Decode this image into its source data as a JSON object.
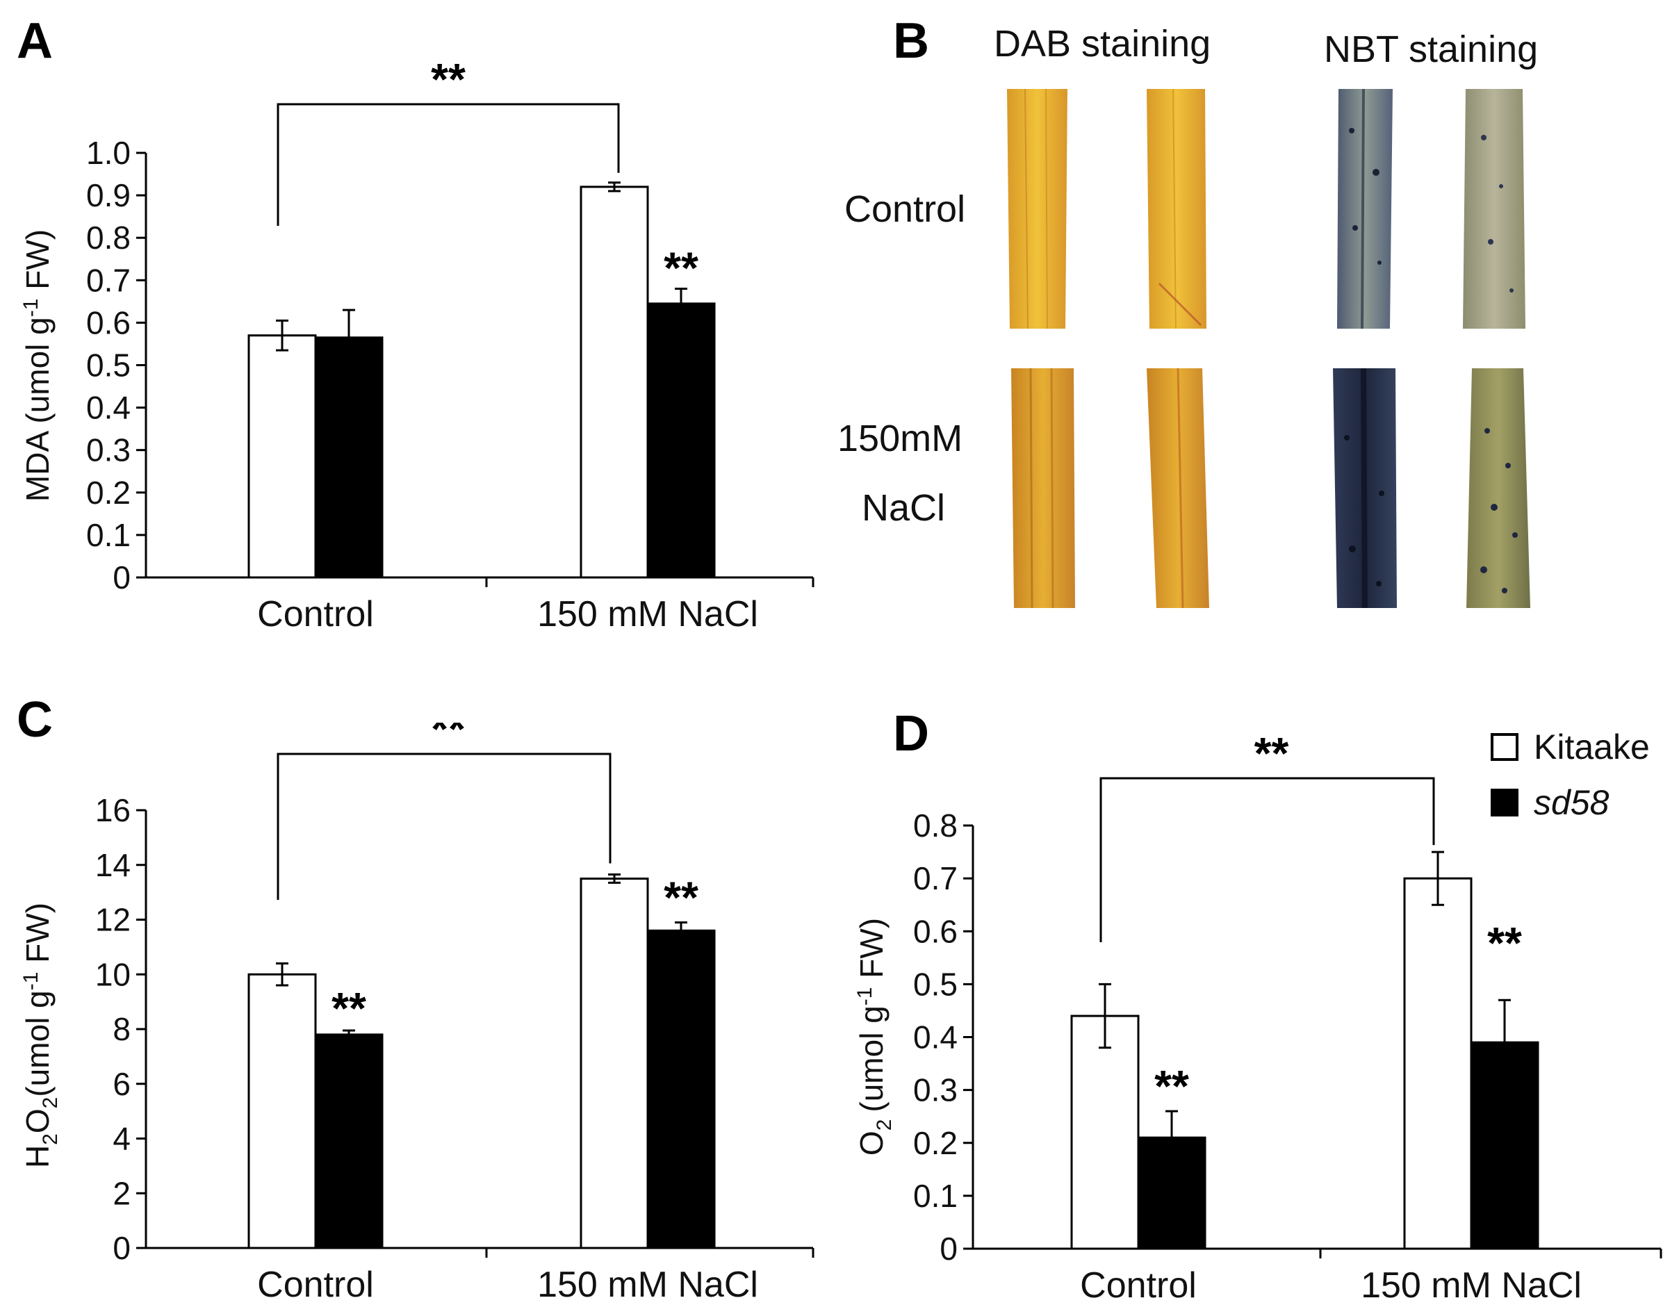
{
  "panel_labels": {
    "a": "A",
    "b": "B",
    "c": "C",
    "d": "D"
  },
  "significance": "**",
  "stain_panel": {
    "headers": [
      "DAB staining",
      "NBT staining"
    ],
    "rows": [
      "Control",
      "150mM",
      "NaCl"
    ],
    "colors": {
      "dab_light": "#e8b533",
      "dab_dark": "#c98a22",
      "nbt_blue": "#3a4760",
      "nbt_olive": "#9a9a62"
    }
  },
  "legend": {
    "items": [
      {
        "label": "Kitaake",
        "color": "#ffffff"
      },
      {
        "label": "sd58",
        "color": "#000000"
      }
    ]
  },
  "chart_data": [
    {
      "id": "A",
      "type": "bar",
      "categories": [
        "Control",
        "150 mM NaCl"
      ],
      "series": [
        {
          "name": "Kitaake",
          "values": [
            0.57,
            0.92
          ],
          "errors": [
            0.035,
            0.01
          ]
        },
        {
          "name": "sd58",
          "values": [
            0.565,
            0.645
          ],
          "errors": [
            0.065,
            0.035
          ]
        }
      ],
      "ylabel": "MDA (umol g-1 FW)",
      "yticks": [
        "0",
        "0.1",
        "0.2",
        "0.3",
        "0.4",
        "0.5",
        "0.6",
        "0.7",
        "0.8",
        "0.9",
        "1.0"
      ],
      "ylim": [
        0,
        1.0
      ],
      "annotations": [
        "**",
        "**"
      ]
    },
    {
      "id": "C",
      "type": "bar",
      "categories": [
        "Control",
        "150 mM NaCl"
      ],
      "series": [
        {
          "name": "Kitaake",
          "values": [
            10.0,
            13.5
          ],
          "errors": [
            0.4,
            0.15
          ]
        },
        {
          "name": "sd58",
          "values": [
            7.8,
            11.6
          ],
          "errors": [
            0.15,
            0.3
          ]
        }
      ],
      "ylabel": "H2O2(umol g-1 FW)",
      "yticks": [
        "0",
        "2",
        "4",
        "6",
        "8",
        "10",
        "12",
        "14",
        "16"
      ],
      "ylim": [
        0,
        16
      ],
      "annotations": [
        "**",
        "**",
        "**"
      ]
    },
    {
      "id": "D",
      "type": "bar",
      "categories": [
        "Control",
        "150 mM NaCl"
      ],
      "series": [
        {
          "name": "Kitaake",
          "values": [
            0.44,
            0.7
          ],
          "errors": [
            0.06,
            0.05
          ]
        },
        {
          "name": "sd58",
          "values": [
            0.21,
            0.39
          ],
          "errors": [
            0.05,
            0.08
          ]
        }
      ],
      "ylabel": "O2-(umol g-1 FW)",
      "yticks": [
        "0",
        "0.1",
        "0.2",
        "0.3",
        "0.4",
        "0.5",
        "0.6",
        "0.7",
        "0.8"
      ],
      "ylim": [
        0,
        0.8
      ],
      "annotations": [
        "**",
        "**",
        "**"
      ]
    }
  ]
}
